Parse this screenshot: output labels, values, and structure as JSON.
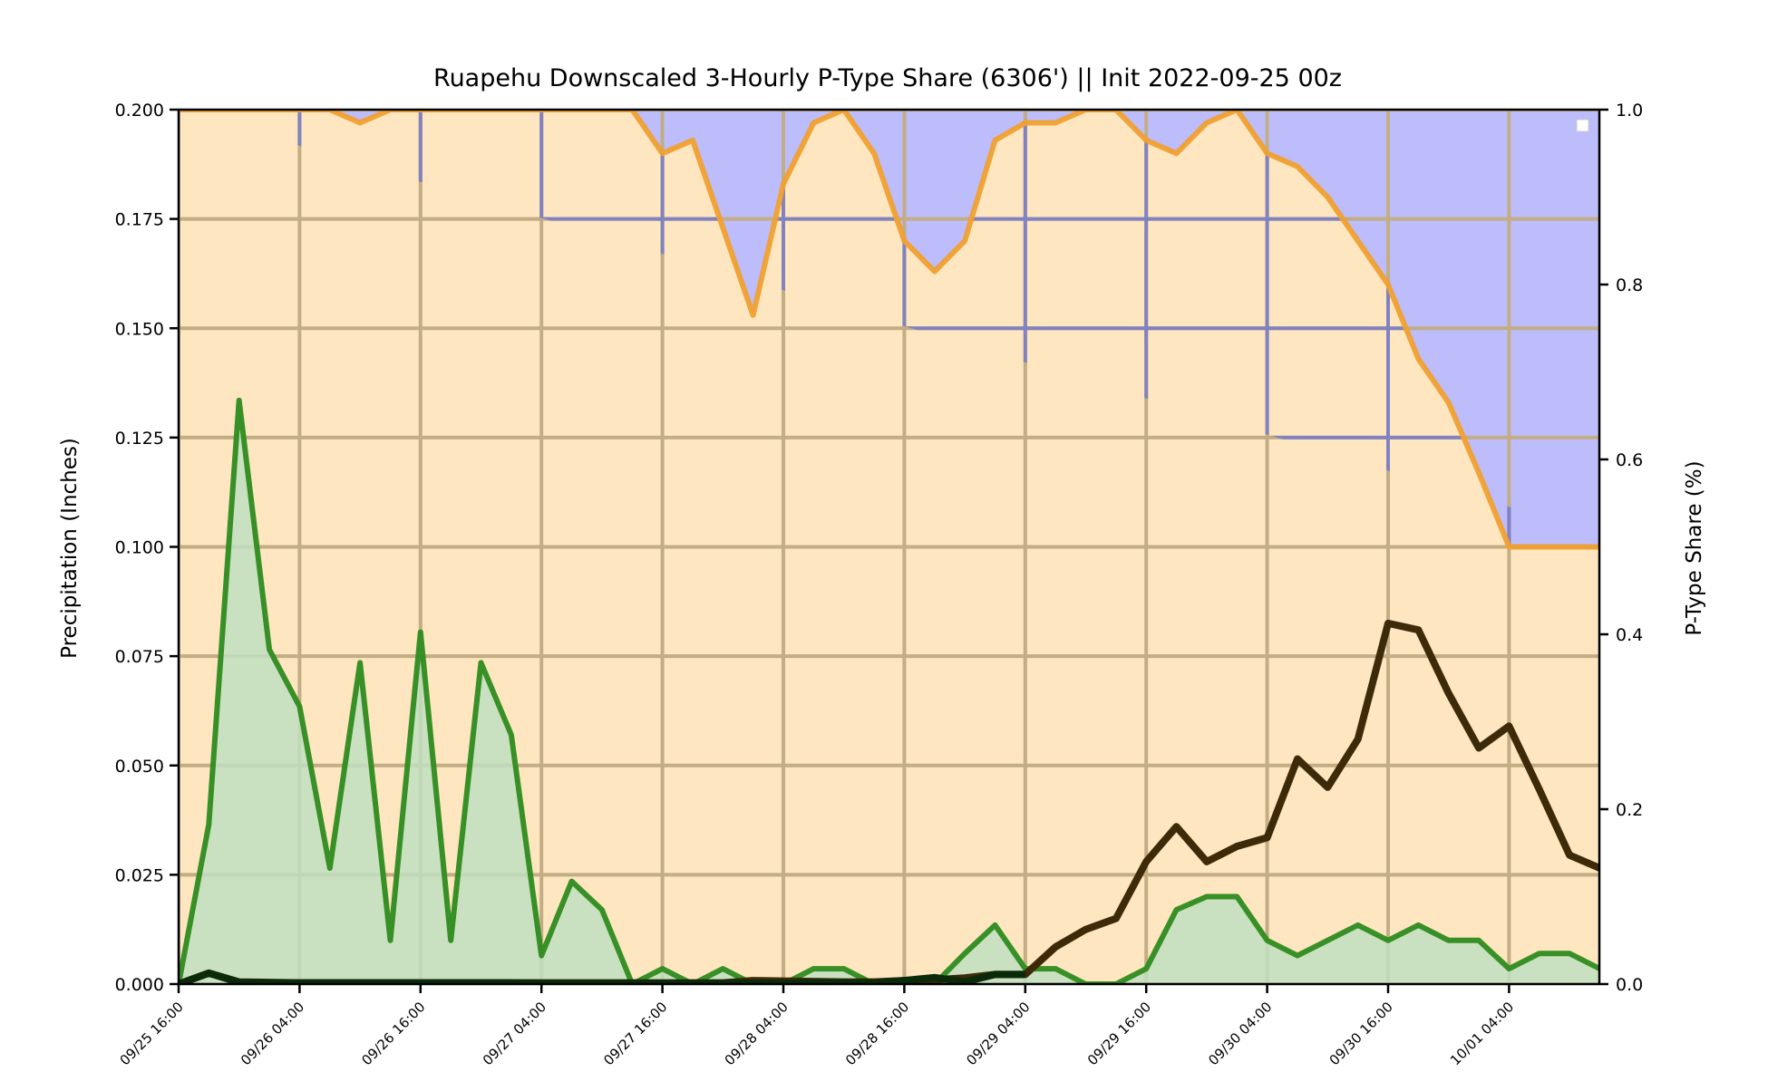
{
  "chart_data": {
    "type": "area",
    "title": "Ruapehu Downscaled 3-Hourly P-Type Share (6306') || Init 2022-09-25 00z",
    "ylabel": "Precipitation (Inches)",
    "y2label": "P-Type Share (%)",
    "ylim": [
      0,
      0.2
    ],
    "y2lim": [
      0,
      1.0
    ],
    "grid": true,
    "legend": "top-right (empty)",
    "x_tick_labels": [
      "09/25 16:00",
      "09/26 04:00",
      "09/26 16:00",
      "09/27 04:00",
      "09/27 16:00",
      "09/28 04:00",
      "09/28 16:00",
      "09/29 04:00",
      "09/29 16:00",
      "09/30 04:00",
      "09/30 16:00",
      "10/01 04:00"
    ],
    "y_tick_labels": [
      "0.000",
      "0.025",
      "0.050",
      "0.075",
      "0.100",
      "0.125",
      "0.150",
      "0.175",
      "0.200"
    ],
    "y2_tick_labels": [
      "0.0",
      "0.2",
      "0.4",
      "0.6",
      "0.8",
      "1.0"
    ],
    "x_step_hours": 3,
    "x_first": "09/25 16:00",
    "colors": {
      "rain_share_fill": "#fde6c0",
      "snow_share_fill": "#bdbdfc",
      "rain_share_line": "#f0a030",
      "precip_line": "#2e8b1e",
      "precip_fill": "#bfdfc0",
      "snow_line": "#3d2a08",
      "ice_line": "#0a2a0a",
      "grid": "#c2ad84",
      "grid_on_snow": "#8282c0"
    },
    "series": [
      {
        "role": "precip",
        "axis": "left",
        "values": [
          0.0,
          0.0365,
          0.1335,
          0.0765,
          0.0635,
          0.0265,
          0.0735,
          0.01,
          0.0805,
          0.01,
          0.0735,
          0.057,
          0.0065,
          0.0235,
          0.017,
          0.0,
          0.0035,
          0.0,
          0.0035,
          0.0,
          0.0,
          0.0035,
          0.0035,
          0.0,
          0.0,
          0.0,
          0.007,
          0.0135,
          0.0035,
          0.0035,
          0.0,
          0.0,
          0.0035,
          0.017,
          0.02,
          0.02,
          0.01,
          0.0065,
          0.01,
          0.0135,
          0.01,
          0.0135,
          0.01,
          0.01,
          0.0035,
          0.007,
          0.007,
          0.0035
        ]
      },
      {
        "role": "snow",
        "axis": "left",
        "values": [
          0.0,
          0.0025,
          0.0005,
          0.0004,
          0.0003,
          0.0003,
          0.0003,
          0.0003,
          0.0003,
          0.0003,
          0.0003,
          0.0003,
          0.0003,
          0.0003,
          0.0003,
          0.0003,
          0.0003,
          0.0003,
          0.0003,
          0.0008,
          0.0007,
          0.0006,
          0.0005,
          0.0005,
          0.0008,
          0.001,
          0.0014,
          0.0022,
          0.0022,
          0.0085,
          0.0125,
          0.015,
          0.028,
          0.036,
          0.028,
          0.0315,
          0.0335,
          0.0515,
          0.045,
          0.056,
          0.0825,
          0.081,
          0.0665,
          0.054,
          0.059,
          0.0445,
          0.0295,
          0.0265
        ]
      },
      {
        "role": "ice",
        "axis": "left",
        "values": [
          0.0,
          0.0025,
          0.0004,
          0.0003,
          0.0003,
          0.0003,
          0.0003,
          0.0003,
          0.0003,
          0.0003,
          0.0003,
          0.0003,
          0.0002,
          0.0002,
          0.0002,
          0.0002,
          0.0002,
          0.0002,
          0.0002,
          0.0002,
          0.0002,
          0.0003,
          0.0003,
          0.0003,
          0.0008,
          0.0015,
          0.0005,
          0.0022,
          0.0022
        ]
      },
      {
        "role": "rain_share",
        "axis": "right",
        "values": [
          1.0,
          1.0,
          1.0,
          1.0,
          1.0,
          1.0,
          0.985,
          1.0,
          1.0,
          1.0,
          1.0,
          1.0,
          1.0,
          1.0,
          1.0,
          1.0,
          0.95,
          0.965,
          0.865,
          0.765,
          0.915,
          0.985,
          1.0,
          0.95,
          0.85,
          0.815,
          0.85,
          0.965,
          0.985,
          0.985,
          1.0,
          1.0,
          0.965,
          0.95,
          0.985,
          1.0,
          0.95,
          0.935,
          0.9,
          0.85,
          0.8,
          0.715,
          0.665,
          0.585,
          0.5,
          0.5,
          0.5,
          0.5,
          0.515
        ]
      }
    ]
  }
}
